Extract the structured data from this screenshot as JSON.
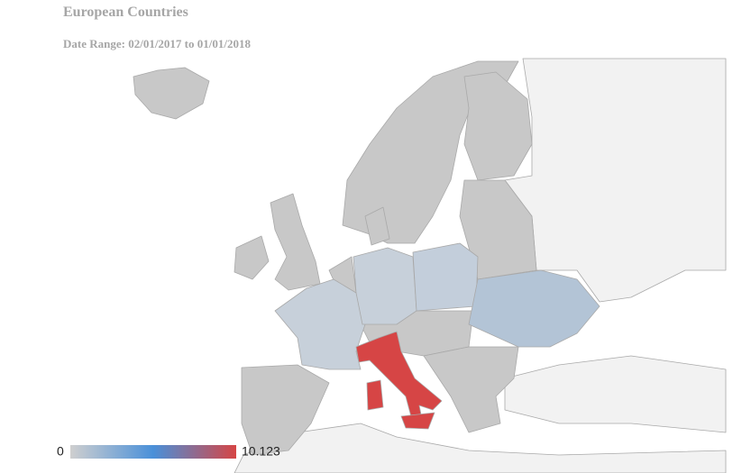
{
  "header": {
    "title": "European Countries",
    "subtitle": "Date Range: 02/01/2017 to 01/01/2018"
  },
  "legend": {
    "min": 0,
    "max": 10.123
  }
}
